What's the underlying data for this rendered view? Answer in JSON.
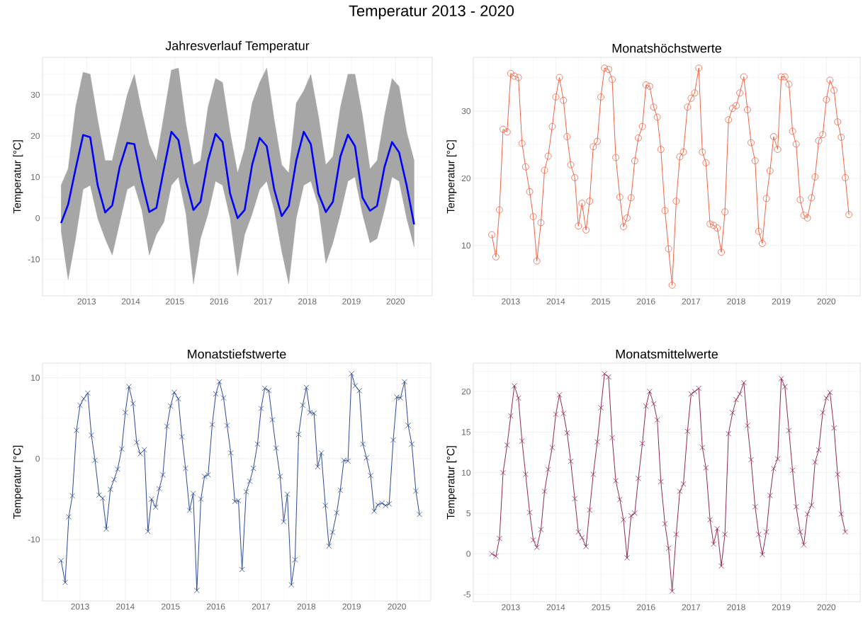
{
  "chart_data": [
    {
      "type": "line",
      "title": "Temperatur 2013 - 2020",
      "subtitle": "Jahresverlauf Temperatur",
      "ylabel": "Temperatur [°C]",
      "grid": true,
      "xlim": [
        "2012-01",
        "2020-11"
      ],
      "xticks": [
        "2013",
        "2014",
        "2015",
        "2016",
        "2017",
        "2018",
        "2019",
        "2020"
      ],
      "ylim": [
        -18.9,
        39.1
      ],
      "yticks": [
        -10,
        0,
        10,
        20,
        30
      ],
      "x": [
        "2012-06",
        "2012-08",
        "2012-10",
        "2012-12",
        "2013-02",
        "2013-04",
        "2013-06",
        "2013-08",
        "2013-10",
        "2013-12",
        "2014-02",
        "2014-04",
        "2014-06",
        "2014-08",
        "2014-10",
        "2014-12",
        "2015-02",
        "2015-04",
        "2015-06",
        "2015-08",
        "2015-10",
        "2015-12",
        "2016-02",
        "2016-04",
        "2016-06",
        "2016-08",
        "2016-10",
        "2016-12",
        "2017-02",
        "2017-04",
        "2017-06",
        "2017-08",
        "2017-10",
        "2017-12",
        "2018-02",
        "2018-04",
        "2018-06",
        "2018-08",
        "2018-10",
        "2018-12",
        "2019-02",
        "2019-04",
        "2019-06",
        "2019-08",
        "2019-10",
        "2019-12",
        "2020-02",
        "2020-04",
        "2020-06"
      ],
      "series": [
        {
          "color": "#0000ff",
          "values": [
            -1.2,
            3.3,
            12,
            20.2,
            19.7,
            8,
            1.4,
            3.1,
            12.5,
            18.3,
            18,
            9,
            1.5,
            2.5,
            12,
            21,
            19,
            9,
            2,
            4,
            14,
            20.5,
            18.5,
            6,
            0,
            2,
            13,
            19.5,
            17.5,
            7,
            0.5,
            3,
            14,
            21,
            18,
            6,
            1.5,
            4,
            15,
            20.3,
            17.5,
            5,
            1.8,
            3,
            12.5,
            18.5,
            16,
            8,
            -1.5
          ],
          "lower": [
            -3,
            -15,
            -5,
            7,
            8,
            0,
            -5,
            -9,
            -1,
            7,
            8,
            2,
            -9,
            -4,
            -1,
            8,
            10,
            1,
            -16,
            -5,
            1,
            9,
            8,
            0,
            -14,
            -4,
            1,
            7,
            9,
            2,
            -8,
            -16,
            0,
            8,
            9,
            3,
            -11,
            -6,
            1,
            9,
            10,
            1,
            -6,
            -5,
            2,
            10,
            9,
            0,
            -7
          ],
          "upper": [
            8,
            12,
            27,
            35.5,
            35,
            24,
            14,
            14,
            22,
            30,
            35,
            26,
            18,
            14,
            25,
            36,
            36.5,
            23,
            13,
            14,
            27,
            34,
            33,
            21,
            11,
            17,
            28,
            33,
            36.5,
            24,
            13,
            11,
            28,
            31,
            35,
            25,
            13,
            15,
            27,
            35,
            35,
            25,
            12,
            14,
            25,
            34,
            32,
            21,
            14
          ]
        }
      ]
    },
    {
      "type": "line",
      "subtitle": "Monatshöchstwerte",
      "ylabel": "Temperatur [°C]",
      "grid": true,
      "marker": "circle",
      "xlim": [
        "2012-03",
        "2020-10"
      ],
      "xticks": [
        "2013",
        "2014",
        "2015",
        "2016",
        "2017",
        "2018",
        "2019",
        "2020"
      ],
      "ylim": [
        2.5,
        38.0
      ],
      "yticks": [
        10,
        20,
        30
      ],
      "x": [
        "2012-08",
        "2012-09",
        "2012-10",
        "2012-11",
        "2012-12",
        "2013-01",
        "2013-02",
        "2013-03",
        "2013-04",
        "2013-05",
        "2013-06",
        "2013-07",
        "2013-08",
        "2013-09",
        "2013-10",
        "2013-11",
        "2013-12",
        "2014-01",
        "2014-02",
        "2014-03",
        "2014-04",
        "2014-05",
        "2014-06",
        "2014-07",
        "2014-08",
        "2014-09",
        "2014-10",
        "2014-11",
        "2014-12",
        "2015-01",
        "2015-02",
        "2015-03",
        "2015-04",
        "2015-05",
        "2015-06",
        "2015-07",
        "2015-08",
        "2015-09",
        "2015-10",
        "2015-11",
        "2015-12",
        "2016-01",
        "2016-02",
        "2016-03",
        "2016-04",
        "2016-05",
        "2016-06",
        "2016-07",
        "2016-08",
        "2016-09",
        "2016-10",
        "2016-11",
        "2016-12",
        "2017-01",
        "2017-02",
        "2017-03",
        "2017-04",
        "2017-05",
        "2017-06",
        "2017-07",
        "2017-08",
        "2017-09",
        "2017-10",
        "2017-11",
        "2017-12",
        "2018-01",
        "2018-02",
        "2018-03",
        "2018-04",
        "2018-05",
        "2018-06",
        "2018-07",
        "2018-08",
        "2018-09",
        "2018-10",
        "2018-11",
        "2018-12",
        "2019-01",
        "2019-02",
        "2019-03",
        "2019-04",
        "2019-05",
        "2019-06",
        "2019-07",
        "2019-08",
        "2019-09",
        "2019-10",
        "2019-11",
        "2019-12",
        "2020-01",
        "2020-02",
        "2020-03",
        "2020-04",
        "2020-05",
        "2020-06",
        "2020-07"
      ],
      "series": [
        {
          "color": "#ef6548",
          "values": [
            11.6,
            8.3,
            15.3,
            27.3,
            26.9,
            35.6,
            35.2,
            35.0,
            25.2,
            21.7,
            18.0,
            14.3,
            7.7,
            13.4,
            21.2,
            23.3,
            27.7,
            32.1,
            35.0,
            31.6,
            26.2,
            22.0,
            20.1,
            12.9,
            16.3,
            12.3,
            16.6,
            24.7,
            25.5,
            32.1,
            36.4,
            36.2,
            34.7,
            23.1,
            17.2,
            12.8,
            14.1,
            17.1,
            22.6,
            26.0,
            27.7,
            33.9,
            33.7,
            30.6,
            29.1,
            24.3,
            15.2,
            9.5,
            4.1,
            16.6,
            23.2,
            23.9,
            30.6,
            31.9,
            32.7,
            36.4,
            23.9,
            22.3,
            13.2,
            13.0,
            12.6,
            9.0,
            15.0,
            28.7,
            30.4,
            30.8,
            32.7,
            35.1,
            30.2,
            25.3,
            22.6,
            12.1,
            10.3,
            17.0,
            21.1,
            26.2,
            24.3,
            35.1,
            35.1,
            34.0,
            27.0,
            25.1,
            16.8,
            14.5,
            14.1,
            17.1,
            20.2,
            25.6,
            26.5,
            31.7,
            34.6,
            33.1,
            28.4,
            26.1,
            20.1,
            14.6
          ]
        }
      ]
    },
    {
      "type": "line",
      "subtitle": "Monatstiefstwerte",
      "ylabel": "Temperatur [°C]",
      "grid": true,
      "marker": "cross",
      "xlim": [
        "2012-03",
        "2020-10"
      ],
      "xticks": [
        "2013",
        "2014",
        "2015",
        "2016",
        "2017",
        "2018",
        "2019",
        "2020"
      ],
      "ylim": [
        -17.6,
        11.8
      ],
      "yticks": [
        -10,
        0,
        10
      ],
      "x": [
        "2012-08",
        "2012-09",
        "2012-10",
        "2012-11",
        "2012-12",
        "2013-01",
        "2013-02",
        "2013-03",
        "2013-04",
        "2013-05",
        "2013-06",
        "2013-07",
        "2013-08",
        "2013-09",
        "2013-10",
        "2013-11",
        "2013-12",
        "2014-01",
        "2014-02",
        "2014-03",
        "2014-04",
        "2014-05",
        "2014-06",
        "2014-07",
        "2014-08",
        "2014-09",
        "2014-10",
        "2014-11",
        "2014-12",
        "2015-01",
        "2015-02",
        "2015-03",
        "2015-04",
        "2015-05",
        "2015-06",
        "2015-07",
        "2015-08",
        "2015-09",
        "2015-10",
        "2015-11",
        "2015-12",
        "2016-01",
        "2016-02",
        "2016-03",
        "2016-04",
        "2016-05",
        "2016-06",
        "2016-07",
        "2016-08",
        "2016-09",
        "2016-10",
        "2016-11",
        "2016-12",
        "2017-01",
        "2017-02",
        "2017-03",
        "2017-04",
        "2017-05",
        "2017-06",
        "2017-07",
        "2017-08",
        "2017-09",
        "2017-10",
        "2017-11",
        "2017-12",
        "2018-01",
        "2018-02",
        "2018-03",
        "2018-04",
        "2018-05",
        "2018-06",
        "2018-07",
        "2018-08",
        "2018-09",
        "2018-10",
        "2018-11",
        "2018-12",
        "2019-01",
        "2019-02",
        "2019-03",
        "2019-04",
        "2019-05",
        "2019-06",
        "2019-07",
        "2019-08",
        "2019-09",
        "2019-10",
        "2019-11",
        "2019-12",
        "2020-01",
        "2020-02",
        "2020-03",
        "2020-04",
        "2020-05",
        "2020-06",
        "2020-07"
      ],
      "series": [
        {
          "color": "#2e4a94",
          "values": [
            -12.6,
            -15.3,
            -7.2,
            -4.6,
            3.5,
            6.6,
            7.4,
            8.1,
            2.9,
            -0.2,
            -4.5,
            -4.9,
            -8.7,
            -3.8,
            -2.6,
            -1.3,
            1.2,
            5.7,
            8.9,
            6.8,
            2.0,
            0.6,
            1.1,
            -9.0,
            -5.0,
            -6.0,
            -3.7,
            -2.0,
            4.0,
            6.5,
            8.2,
            7.4,
            2.7,
            -1.2,
            -6.4,
            -4.3,
            -16.3,
            -5.0,
            -2.2,
            -2.0,
            4.2,
            8.0,
            9.5,
            7.5,
            4.1,
            0.7,
            -5.3,
            -5.2,
            -13.7,
            -4.1,
            -2.8,
            -1.2,
            1.8,
            6.2,
            8.7,
            8.4,
            4.8,
            1.3,
            -2.2,
            -7.8,
            -4.4,
            -15.6,
            -12.5,
            3.0,
            6.6,
            8.8,
            5.7,
            5.6,
            -1.0,
            0.7,
            -5.8,
            -10.8,
            -9.1,
            -6.7,
            -3.9,
            -0.2,
            -0.3,
            10.5,
            9.0,
            8.4,
            1.8,
            0.1,
            -2.1,
            -6.5,
            -5.7,
            -5.5,
            -5.8,
            -5.6,
            2.3,
            7.6,
            7.5,
            9.5,
            4.1,
            1.8,
            -4.0,
            -6.9
          ]
        }
      ]
    },
    {
      "type": "line",
      "subtitle": "Monatsmittelwerte",
      "ylabel": "Temperatur [°C]",
      "grid": true,
      "marker": "cross",
      "xlim": [
        "2012-03",
        "2020-10"
      ],
      "xticks": [
        "2013",
        "2014",
        "2015",
        "2016",
        "2017",
        "2018",
        "2019",
        "2020"
      ],
      "ylim": [
        -5.9,
        23.5
      ],
      "yticks": [
        -5,
        0,
        5,
        10,
        15,
        20
      ],
      "x": [
        "2012-08",
        "2012-09",
        "2012-10",
        "2012-11",
        "2012-12",
        "2013-01",
        "2013-02",
        "2013-03",
        "2013-04",
        "2013-05",
        "2013-06",
        "2013-07",
        "2013-08",
        "2013-09",
        "2013-10",
        "2013-11",
        "2013-12",
        "2014-01",
        "2014-02",
        "2014-03",
        "2014-04",
        "2014-05",
        "2014-06",
        "2014-07",
        "2014-08",
        "2014-09",
        "2014-10",
        "2014-11",
        "2014-12",
        "2015-01",
        "2015-02",
        "2015-03",
        "2015-04",
        "2015-05",
        "2015-06",
        "2015-07",
        "2015-08",
        "2015-09",
        "2015-10",
        "2015-11",
        "2015-12",
        "2016-01",
        "2016-02",
        "2016-03",
        "2016-04",
        "2016-05",
        "2016-06",
        "2016-07",
        "2016-08",
        "2016-09",
        "2016-10",
        "2016-11",
        "2016-12",
        "2017-01",
        "2017-02",
        "2017-03",
        "2017-04",
        "2017-05",
        "2017-06",
        "2017-07",
        "2017-08",
        "2017-09",
        "2017-10",
        "2017-11",
        "2017-12",
        "2018-01",
        "2018-02",
        "2018-03",
        "2018-04",
        "2018-05",
        "2018-06",
        "2018-07",
        "2018-08",
        "2018-09",
        "2018-10",
        "2018-11",
        "2018-12",
        "2019-01",
        "2019-02",
        "2019-03",
        "2019-04",
        "2019-05",
        "2019-06",
        "2019-07",
        "2019-08",
        "2019-09",
        "2019-10",
        "2019-11",
        "2019-12",
        "2020-01",
        "2020-02",
        "2020-03",
        "2020-04",
        "2020-05",
        "2020-06"
      ],
      "series": [
        {
          "color": "#8e2a58",
          "values": [
            0,
            -0.3,
            1.9,
            10.0,
            13.4,
            17.0,
            20.7,
            19.2,
            13.9,
            9.8,
            5.1,
            1.7,
            0.8,
            3.0,
            7.7,
            10.4,
            13.1,
            17.2,
            19.6,
            17.3,
            14.9,
            11.4,
            6.8,
            2.7,
            2.0,
            0.9,
            5.4,
            9.8,
            13.8,
            18.0,
            22.2,
            21.8,
            14.3,
            9.0,
            6.7,
            4.2,
            -0.5,
            4.7,
            5.0,
            9.3,
            13.6,
            18.2,
            20.0,
            18.5,
            16.5,
            8.9,
            3.7,
            0.7,
            -4.6,
            2.4,
            7.7,
            8.6,
            15.1,
            19.7,
            20.0,
            20.4,
            13.1,
            10.6,
            4.2,
            1.2,
            3.1,
            -1.5,
            2.4,
            14.8,
            17.4,
            19.0,
            19.7,
            21.1,
            15.8,
            11.6,
            5.8,
            2.4,
            -0.1,
            2.7,
            7.2,
            10.5,
            11.7,
            21.6,
            20.6,
            15.2,
            10.3,
            5.8,
            2.7,
            1.1,
            4.9,
            6.0,
            11.3,
            12.8,
            17.4,
            19.2,
            19.9,
            15.5,
            9.8,
            4.9,
            2.7
          ]
        }
      ]
    }
  ]
}
